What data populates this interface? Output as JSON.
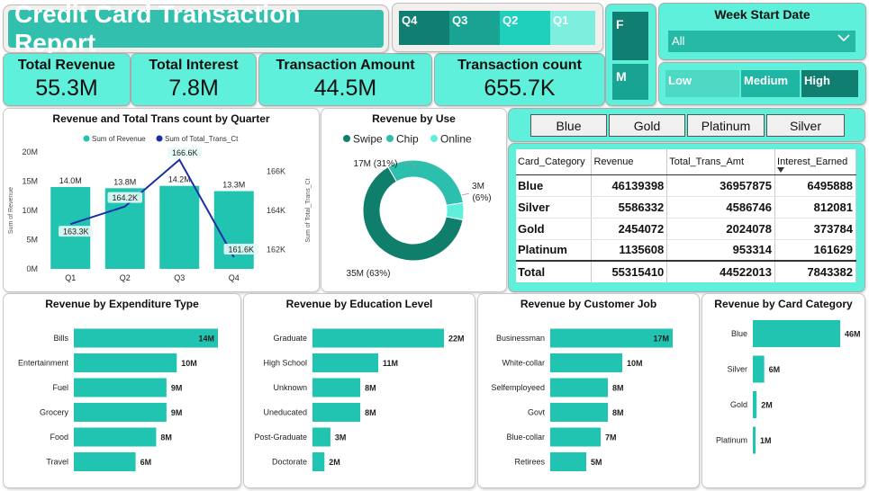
{
  "title": "Credit Card Transaction Report",
  "kpis": [
    {
      "label": "Total Revenue",
      "value": "55.3M"
    },
    {
      "label": "Total Interest",
      "value": "7.8M"
    },
    {
      "label": "Transaction Amount",
      "value": "44.5M"
    },
    {
      "label": "Transaction count",
      "value": "655.7K"
    }
  ],
  "quarters": [
    "Q4",
    "Q3",
    "Q2",
    "Q1"
  ],
  "quarter_colors": [
    "#117e72",
    "#19a392",
    "#1ed1bd",
    "#7eefdf"
  ],
  "gender": [
    "F",
    "M"
  ],
  "week": {
    "title": "Week Start Date",
    "selected": "All"
  },
  "levels": [
    "Low",
    "Medium",
    "High"
  ],
  "categories_buttons": [
    "Blue",
    "Gold",
    "Platinum",
    "Silver"
  ],
  "table": {
    "headers": [
      "Card_Category",
      "Revenue",
      "Total_Trans_Amt",
      "Interest_Earned"
    ],
    "rows": [
      [
        "Blue",
        "46139398",
        "36957875",
        "6495888"
      ],
      [
        "Silver",
        "5586332",
        "4586746",
        "812081"
      ],
      [
        "Gold",
        "2454072",
        "2024078",
        "373784"
      ],
      [
        "Platinum",
        "1135608",
        "953314",
        "161629"
      ]
    ],
    "total": [
      "Total",
      "55315410",
      "44522013",
      "7843382"
    ]
  },
  "chart_data": [
    {
      "type": "bar",
      "title": "Revenue and Total Trans count by Quarter",
      "categories": [
        "Q1",
        "Q2",
        "Q3",
        "Q4"
      ],
      "series": [
        {
          "name": "Sum of Revenue",
          "type": "bar",
          "values": [
            14.0,
            13.8,
            14.2,
            13.3
          ],
          "labels": [
            "14.0M",
            "13.8M",
            "14.2M",
            "13.3M"
          ],
          "color": "#20c4b0"
        },
        {
          "name": "Sum of Total_Trans_Ct",
          "type": "line",
          "values": [
            163.3,
            164.2,
            166.6,
            161.6
          ],
          "labels": [
            "163.3K",
            "164.2K",
            "166.6K",
            "161.6K"
          ],
          "color": "#1a2ea8"
        }
      ],
      "ylabel": "Sum of Revenue",
      "y2label": "Sum of Total_Trans_Ct",
      "yticks": [
        "0M",
        "5M",
        "10M",
        "15M",
        "20M"
      ],
      "ylim": [
        0,
        20
      ],
      "y2ticks": [
        "162K",
        "164K",
        "166K"
      ],
      "y2lim": [
        161,
        167
      ],
      "legend": "top"
    },
    {
      "type": "pie",
      "title": "Revenue by Use",
      "categories": [
        "Swipe",
        "Chip",
        "Online"
      ],
      "values": [
        35,
        17,
        3
      ],
      "labels": [
        "35M (63%)",
        "17M (31%)",
        "3M\n(6%)"
      ],
      "colors": [
        "#0f7f6c",
        "#2dbfad",
        "#5ff0db"
      ],
      "legend": "top"
    },
    {
      "type": "bar",
      "title": "Revenue by Expenditure Type",
      "categories": [
        "Bills",
        "Entertainment",
        "Fuel",
        "Grocery",
        "Food",
        "Travel"
      ],
      "values": [
        14,
        10,
        9,
        9,
        8,
        6
      ],
      "labels": [
        "14M",
        "10M",
        "9M",
        "9M",
        "8M",
        "6M"
      ]
    },
    {
      "type": "bar",
      "title": "Revenue by Education Level",
      "categories": [
        "Graduate",
        "High School",
        "Unknown",
        "Uneducated",
        "Post-Graduate",
        "Doctorate"
      ],
      "values": [
        22,
        11,
        8,
        8,
        3,
        2
      ],
      "labels": [
        "22M",
        "11M",
        "8M",
        "8M",
        "3M",
        "2M"
      ]
    },
    {
      "type": "bar",
      "title": "Revenue by Customer Job",
      "categories": [
        "Businessman",
        "White-collar",
        "Selfemployeed",
        "Govt",
        "Blue-collar",
        "Retirees"
      ],
      "values": [
        17,
        10,
        8,
        8,
        7,
        5
      ],
      "labels": [
        "17M",
        "10M",
        "8M",
        "8M",
        "7M",
        "5M"
      ]
    },
    {
      "type": "bar",
      "title": "Revenue by Card Category",
      "categories": [
        "Blue",
        "Silver",
        "Gold",
        "Platinum"
      ],
      "values": [
        46,
        6,
        2,
        1
      ],
      "labels": [
        "46M",
        "6M",
        "2M",
        "1M"
      ]
    }
  ]
}
